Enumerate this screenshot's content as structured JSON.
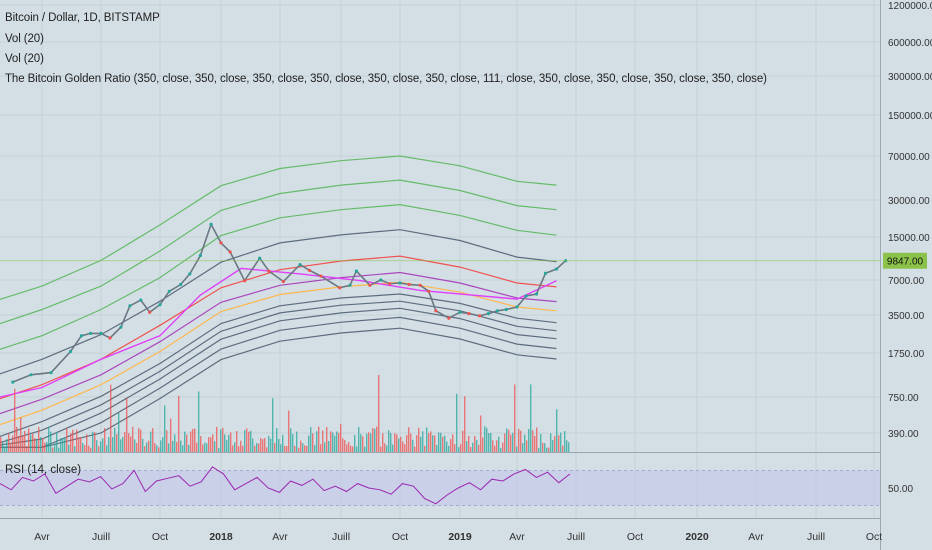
{
  "legend": {
    "title": "Bitcoin / Dollar, 1D, BITSTAMP",
    "vol1": "Vol (20)",
    "vol2": "Vol (20)",
    "indicator": "The Bitcoin Golden Ratio (350, close, 350, close, 350, close, 350, close, 350, close, 350, close, 111, close, 350, close, 350, close, 350, close, 350, close)"
  },
  "rsi_legend": "RSI (14, close)",
  "price_label": "9847.00",
  "colors": {
    "background": "#d3dfe5",
    "grid": "#c3d0d7",
    "candle_up": "#26a69a",
    "candle_down": "#ef5350",
    "rsi_line": "#9c27b0",
    "rsi_band": "#c3c7ea",
    "price_marker": "#8bc34a",
    "axis_text": "#333333"
  },
  "chart_data": [
    {
      "type": "line",
      "title": "Bitcoin / Dollar, 1D, BITSTAMP",
      "yscale": "log",
      "ylim": [
        300,
        1500000
      ],
      "x_ticks": [
        "Avr",
        "Juill",
        "Oct",
        "2018",
        "Avr",
        "Juill",
        "Oct",
        "2019",
        "Avr",
        "Juill",
        "Oct",
        "2020",
        "Avr",
        "Juill",
        "Oct"
      ],
      "y_ticks": [
        "1200000.00",
        "600000.00",
        "300000.00",
        "150000.00",
        "70000.00",
        "30000.00",
        "15000.00",
        "7000.00",
        "3500.00",
        "1750.00",
        "750.00",
        "390.00"
      ],
      "last_price": 9847,
      "price_series": {
        "x": [
          "2017-02-15",
          "2017-03-15",
          "2017-04-15",
          "2017-05-15",
          "2017-06-01",
          "2017-06-15",
          "2017-07-01",
          "2017-07-15",
          "2017-08-01",
          "2017-08-15",
          "2017-09-01",
          "2017-09-15",
          "2017-10-01",
          "2017-10-15",
          "2017-11-01",
          "2017-11-15",
          "2017-12-01",
          "2017-12-17",
          "2018-01-01",
          "2018-01-15",
          "2018-02-06",
          "2018-03-01",
          "2018-03-15",
          "2018-04-06",
          "2018-05-01",
          "2018-05-15",
          "2018-06-01",
          "2018-06-29",
          "2018-07-15",
          "2018-07-25",
          "2018-08-15",
          "2018-09-01",
          "2018-09-15",
          "2018-10-01",
          "2018-10-15",
          "2018-11-01",
          "2018-11-14",
          "2018-11-25",
          "2018-12-15",
          "2019-01-01",
          "2019-01-15",
          "2019-02-01",
          "2019-02-15",
          "2019-03-01",
          "2019-03-15",
          "2019-04-01",
          "2019-04-15",
          "2019-05-01",
          "2019-05-15",
          "2019-06-01",
          "2019-06-15"
        ],
        "close": [
          1000,
          1150,
          1200,
          1800,
          2400,
          2500,
          2500,
          2300,
          2800,
          4200,
          4700,
          3700,
          4300,
          5600,
          6400,
          7800,
          10800,
          19000,
          13500,
          11500,
          6900,
          10300,
          8200,
          6800,
          9200,
          8300,
          7500,
          6000,
          6300,
          8200,
          6300,
          7000,
          6500,
          6600,
          6400,
          6300,
          5600,
          3800,
          3300,
          3700,
          3600,
          3450,
          3600,
          3800,
          3900,
          4100,
          5100,
          5300,
          7900,
          8500,
          9847
        ]
      },
      "golden_ratio_curves": {
        "x": [
          "2017-01",
          "2017-04",
          "2017-07",
          "2017-10",
          "2018-01",
          "2018-04",
          "2018-07",
          "2018-10",
          "2019-01",
          "2019-04",
          "2019-06"
        ],
        "bands": [
          {
            "values": [
              4300,
              6200,
              9900,
              18800,
              39500,
              55000,
              64000,
              70000,
              58000,
              43000,
              40000
            ],
            "color": "#66bb6a"
          },
          {
            "values": [
              2700,
              3900,
              6200,
              11700,
              24700,
              34000,
              40000,
              44000,
              36000,
              27000,
              25000
            ],
            "color": "#66bb6a"
          },
          {
            "values": [
              1700,
              2400,
              3900,
              7300,
              15400,
              21500,
              25000,
              27500,
              22500,
              17000,
              15500
            ],
            "color": "#66bb6a"
          },
          {
            "values": [
              1050,
              1550,
              2450,
              4600,
              9600,
              13500,
              15600,
              17200,
              14100,
              10500,
              9700
            ],
            "color": "#5d6d7e"
          },
          {
            "values": [
              660,
              950,
              1550,
              2900,
              6000,
              8400,
              9800,
              10700,
              8800,
              6600,
              6100
            ],
            "color": "#ef5350"
          },
          {
            "values": [
              500,
              720,
              1150,
              2150,
              4500,
              6300,
              7300,
              8000,
              6600,
              4900,
              4560
            ],
            "color": "#ab47bc"
          },
          {
            "values": [
              410,
              590,
              950,
              1800,
              3750,
              5250,
              6100,
              6700,
              5500,
              4100,
              3800
            ],
            "color": "#ffb74d"
          },
          {
            "values": [
              330,
              480,
              760,
              1430,
              3000,
              4200,
              4900,
              5300,
              4400,
              3300,
              3040
            ],
            "color": "#5d6d7e"
          },
          {
            "values": [
              300,
              410,
              650,
              1230,
              2600,
              3650,
              4250,
              4600,
              3800,
              2850,
              2630
            ],
            "color": "#5d6d7e"
          },
          {
            "values": [
              300,
              350,
              560,
              1060,
              2250,
              3150,
              3650,
              4000,
              3280,
              2450,
              2270
            ],
            "color": "#5d6d7e"
          },
          {
            "values": [
              300,
              300,
              470,
              890,
              1880,
              2650,
              3070,
              3350,
              2750,
              2060,
              1900
            ],
            "color": "#5d6d7e"
          },
          {
            "values": [
              300,
              300,
              390,
              730,
              1540,
              2170,
              2520,
              2750,
              2260,
              1690,
              1560
            ],
            "color": "#5d6d7e"
          }
        ],
        "short_ma": {
          "values": [
            700,
            900,
            1550,
            2400,
            3500,
            5200,
            8600,
            7800,
            6900,
            5700,
            4800,
            6900
          ],
          "x": [
            "2017-01",
            "2017-04",
            "2017-07",
            "2017-10",
            "2017-11",
            "2017-12",
            "2018-02",
            "2018-05",
            "2018-08",
            "2018-11",
            "2019-04",
            "2019-06"
          ],
          "color": "#e040fb"
        }
      }
    },
    {
      "type": "line",
      "title": "RSI (14, close)",
      "y_ticks": [
        "50.00"
      ],
      "band": [
        30,
        70
      ],
      "series_values": [
        55,
        48,
        62,
        58,
        66,
        44,
        52,
        60,
        57,
        63,
        49,
        55,
        70,
        46,
        58,
        61,
        64,
        52,
        57,
        74,
        66,
        48,
        55,
        62,
        50,
        45,
        58,
        53,
        60,
        47,
        52,
        46,
        55,
        50,
        48,
        43,
        55,
        52,
        38,
        32,
        42,
        50,
        56,
        48,
        60,
        58,
        66,
        71,
        62,
        68,
        56,
        66
      ]
    }
  ]
}
